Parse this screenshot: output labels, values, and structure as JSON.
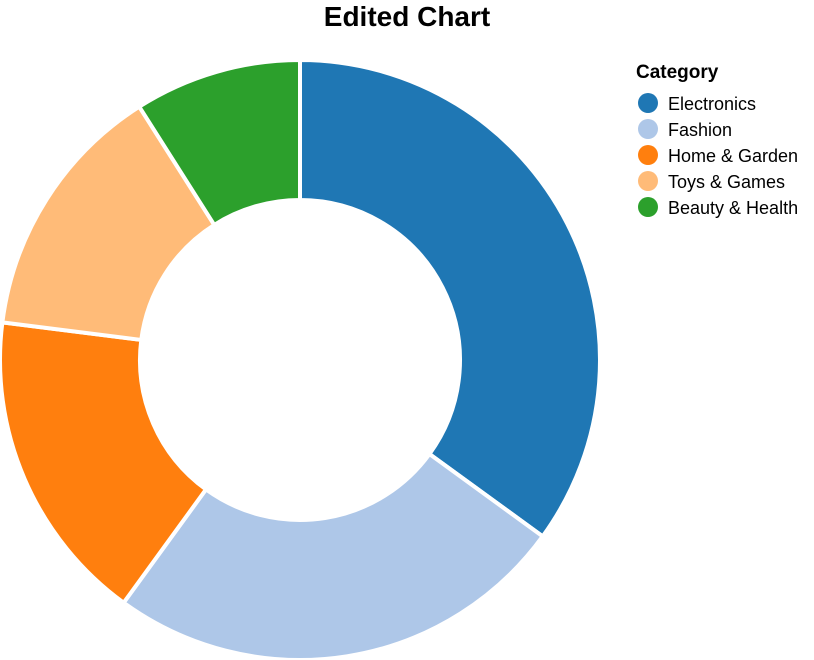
{
  "chart_data": {
    "type": "pie",
    "variant": "donut",
    "title": "Edited Chart",
    "legend": {
      "title": "Category",
      "position": "top-right"
    },
    "categories": [
      "Electronics",
      "Fashion",
      "Home & Garden",
      "Toys & Games",
      "Beauty & Health"
    ],
    "values": [
      35,
      25,
      17,
      14,
      9
    ],
    "colors": [
      "#1f77b4",
      "#aec7e8",
      "#ff7f0e",
      "#ffbb78",
      "#2ca02c"
    ]
  }
}
